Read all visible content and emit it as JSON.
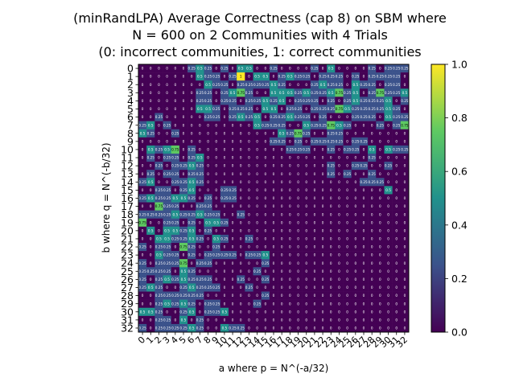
{
  "chart_data": {
    "type": "heatmap",
    "title_lines": [
      "(minRandLPA) Average Correctness (cap 8) on SBM where",
      "N = 600 on 2 Communities with 4 Trials",
      "(0: incorrect communities, 1: correct communities"
    ],
    "xlabel": "a where p = N^(-a/32)",
    "ylabel": "b where q = N^(-b/32)",
    "x_ticks": [
      "0",
      "1",
      "2",
      "3",
      "4",
      "5",
      "6",
      "7",
      "8",
      "9",
      "10",
      "11",
      "12",
      "13",
      "14",
      "15",
      "16",
      "17",
      "18",
      "19",
      "20",
      "21",
      "22",
      "23",
      "24",
      "25",
      "26",
      "27",
      "28",
      "29",
      "30",
      "31",
      "32"
    ],
    "y_ticks": [
      "0",
      "1",
      "2",
      "3",
      "4",
      "5",
      "6",
      "7",
      "8",
      "9",
      "10",
      "11",
      "12",
      "13",
      "14",
      "15",
      "16",
      "17",
      "18",
      "19",
      "20",
      "21",
      "22",
      "23",
      "24",
      "25",
      "26",
      "27",
      "28",
      "29",
      "30",
      "31",
      "32"
    ],
    "colorbar_ticks": [
      "0.0",
      "0.2",
      "0.4",
      "0.6",
      "0.8",
      "1.0"
    ],
    "zlim": [
      0,
      1
    ],
    "colormap": "viridis",
    "values": [
      [
        0.0,
        0.0,
        0.0,
        0.0,
        0.0,
        0.0,
        0.25,
        0.5,
        0.25,
        0.0,
        0.25,
        0.0,
        0.5,
        0.5,
        0.0,
        0.0,
        0.25,
        0.0,
        0.0,
        0.0,
        0.0,
        0.25,
        0.0,
        0.5,
        0.0,
        0.0,
        0.0,
        0.0,
        0.25,
        0.0,
        0.25,
        0.25,
        0.25
      ],
      [
        0.0,
        0.0,
        0.0,
        0.0,
        0.0,
        0.0,
        0.0,
        0.5,
        0.25,
        0.25,
        0.0,
        0.25,
        1.0,
        0.0,
        0.5,
        0.5,
        0.0,
        0.25,
        0.5,
        0.25,
        0.25,
        0.0,
        0.25,
        0.25,
        0.25,
        0.0,
        0.25,
        0.0,
        0.25,
        0.25,
        0.25,
        0.25,
        0.0
      ],
      [
        0.0,
        0.0,
        0.0,
        0.0,
        0.0,
        0.0,
        0.0,
        0.0,
        0.5,
        0.25,
        0.25,
        0.0,
        0.25,
        0.25,
        0.25,
        0.25,
        0.5,
        0.25,
        0.0,
        0.0,
        0.0,
        0.25,
        0.5,
        0.25,
        0.25,
        0.0,
        0.5,
        0.25,
        0.25,
        0.0,
        0.25,
        0.25,
        0.0
      ],
      [
        0.0,
        0.0,
        0.0,
        0.0,
        0.0,
        0.0,
        0.0,
        0.25,
        0.25,
        0.0,
        0.25,
        0.5,
        0.75,
        0.25,
        0.0,
        0.0,
        0.5,
        0.5,
        0.5,
        0.25,
        0.5,
        0.25,
        0.25,
        0.5,
        0.75,
        0.25,
        0.5,
        0.0,
        0.25,
        0.75,
        0.25,
        0.25,
        0.5
      ],
      [
        0.0,
        0.0,
        0.0,
        0.0,
        0.0,
        0.0,
        0.0,
        0.25,
        0.25,
        0.0,
        0.25,
        0.25,
        0.0,
        0.25,
        0.25,
        0.5,
        0.25,
        0.5,
        0.0,
        0.25,
        0.25,
        0.25,
        0.0,
        0.25,
        0.0,
        0.25,
        0.5,
        0.25,
        0.25,
        0.25,
        0.5,
        0.0,
        0.25
      ],
      [
        0.0,
        0.0,
        0.0,
        0.0,
        0.0,
        0.0,
        0.0,
        0.5,
        0.5,
        0.25,
        0.0,
        0.25,
        0.25,
        0.25,
        0.0,
        0.5,
        0.5,
        0.0,
        0.25,
        0.25,
        0.0,
        0.25,
        0.25,
        0.25,
        0.75,
        0.5,
        0.25,
        0.25,
        0.25,
        0.25,
        0.5,
        0.25,
        0.0
      ],
      [
        0.0,
        0.0,
        0.25,
        0.0,
        0.0,
        0.0,
        0.0,
        0.0,
        0.25,
        0.25,
        0.0,
        0.25,
        0.5,
        0.25,
        0.5,
        0.0,
        0.25,
        0.25,
        0.5,
        0.25,
        0.25,
        0.0,
        0.25,
        0.0,
        0.0,
        0.0,
        0.25,
        0.25,
        0.25,
        0.0,
        0.5,
        0.25,
        0.25
      ],
      [
        0.25,
        0.5,
        0.0,
        0.25,
        0.0,
        0.0,
        0.0,
        0.0,
        0.0,
        0.0,
        0.0,
        0.0,
        0.0,
        0.0,
        0.5,
        0.25,
        0.25,
        0.25,
        0.0,
        0.0,
        0.5,
        0.25,
        0.25,
        0.75,
        0.5,
        0.25,
        0.0,
        0.0,
        0.0,
        0.25,
        0.0,
        0.25,
        0.75
      ],
      [
        0.5,
        0.25,
        0.0,
        0.0,
        0.25,
        0.0,
        0.0,
        0.0,
        0.0,
        0.0,
        0.0,
        0.0,
        0.0,
        0.0,
        0.0,
        0.0,
        0.0,
        0.5,
        0.25,
        0.75,
        0.25,
        0.0,
        0.0,
        0.25,
        0.25,
        0.0,
        0.0,
        0.0,
        0.0,
        0.0,
        0.0,
        0.0,
        0.0
      ],
      [
        0.0,
        0.0,
        0.0,
        0.0,
        0.0,
        0.0,
        0.0,
        0.0,
        0.0,
        0.0,
        0.0,
        0.0,
        0.0,
        0.0,
        0.0,
        0.0,
        0.25,
        0.25,
        0.0,
        0.25,
        0.0,
        0.25,
        0.25,
        0.25,
        0.25,
        0.0,
        0.25,
        0.25,
        0.0,
        0.0,
        0.0,
        0.0,
        0.0
      ],
      [
        0.0,
        0.5,
        0.25,
        0.5,
        0.75,
        0.0,
        0.25,
        0.0,
        0.0,
        0.0,
        0.0,
        0.0,
        0.0,
        0.0,
        0.0,
        0.0,
        0.0,
        0.0,
        0.25,
        0.25,
        0.25,
        0.0,
        0.0,
        0.25,
        0.0,
        0.25,
        0.25,
        0.0,
        0.5,
        0.0,
        0.5,
        0.25,
        0.25
      ],
      [
        0.0,
        0.25,
        0.0,
        0.25,
        0.25,
        0.0,
        0.25,
        0.5,
        0.0,
        0.0,
        0.0,
        0.0,
        0.0,
        0.0,
        0.0,
        0.0,
        0.0,
        0.0,
        0.0,
        0.0,
        0.0,
        0.0,
        0.0,
        0.0,
        0.0,
        0.0,
        0.0,
        0.0,
        0.25,
        0.0,
        0.0,
        0.0,
        0.0
      ],
      [
        0.0,
        0.0,
        0.25,
        0.0,
        0.25,
        0.25,
        0.5,
        0.25,
        0.0,
        0.0,
        0.0,
        0.0,
        0.0,
        0.0,
        0.0,
        0.0,
        0.0,
        0.0,
        0.0,
        0.0,
        0.0,
        0.0,
        0.0,
        0.25,
        0.0,
        0.0,
        0.25,
        0.25,
        0.0,
        0.0,
        0.25,
        0.0,
        0.0
      ],
      [
        0.0,
        0.25,
        0.0,
        0.25,
        0.25,
        0.0,
        0.25,
        0.25,
        0.0,
        0.0,
        0.0,
        0.0,
        0.0,
        0.0,
        0.0,
        0.0,
        0.0,
        0.0,
        0.0,
        0.0,
        0.0,
        0.0,
        0.0,
        0.25,
        0.0,
        0.25,
        0.0,
        0.0,
        0.25,
        0.0,
        0.0,
        0.0,
        0.0
      ],
      [
        0.25,
        0.5,
        0.0,
        0.0,
        0.25,
        0.25,
        0.5,
        0.25,
        0.0,
        0.0,
        0.0,
        0.0,
        0.0,
        0.0,
        0.0,
        0.0,
        0.0,
        0.0,
        0.0,
        0.0,
        0.0,
        0.0,
        0.0,
        0.0,
        0.0,
        0.0,
        0.0,
        0.25,
        0.25,
        0.25,
        0.0,
        0.0,
        0.0
      ],
      [
        0.0,
        0.0,
        0.25,
        0.25,
        0.0,
        0.25,
        0.5,
        0.0,
        0.0,
        0.0,
        0.25,
        0.25,
        0.0,
        0.0,
        0.0,
        0.0,
        0.0,
        0.0,
        0.0,
        0.0,
        0.0,
        0.0,
        0.0,
        0.0,
        0.0,
        0.0,
        0.0,
        0.0,
        0.0,
        0.0,
        0.5,
        0.0,
        0.0
      ],
      [
        0.25,
        0.5,
        0.25,
        0.25,
        0.5,
        0.5,
        0.25,
        0.0,
        0.25,
        0.0,
        0.25,
        0.25,
        0.0,
        0.0,
        0.0,
        0.0,
        0.0,
        0.0,
        0.0,
        0.0,
        0.0,
        0.0,
        0.0,
        0.0,
        0.0,
        0.0,
        0.0,
        0.0,
        0.0,
        0.0,
        0.0,
        0.0,
        0.0
      ],
      [
        0.0,
        0.0,
        0.75,
        0.25,
        0.25,
        0.0,
        0.0,
        0.25,
        0.25,
        0.0,
        0.0,
        0.0,
        0.0,
        0.0,
        0.0,
        0.0,
        0.0,
        0.0,
        0.0,
        0.0,
        0.0,
        0.0,
        0.0,
        0.0,
        0.0,
        0.0,
        0.0,
        0.0,
        0.0,
        0.0,
        0.0,
        0.0,
        0.0
      ],
      [
        0.25,
        0.25,
        0.25,
        0.25,
        0.5,
        0.25,
        0.25,
        0.5,
        0.25,
        0.25,
        0.0,
        0.0,
        0.25,
        0.0,
        0.0,
        0.0,
        0.0,
        0.0,
        0.0,
        0.0,
        0.0,
        0.0,
        0.0,
        0.0,
        0.0,
        0.0,
        0.0,
        0.0,
        0.0,
        0.0,
        0.0,
        0.0,
        0.0
      ],
      [
        0.75,
        0.0,
        0.0,
        0.25,
        0.25,
        0.0,
        0.25,
        0.0,
        0.5,
        0.5,
        0.25,
        0.0,
        0.0,
        0.0,
        0.0,
        0.0,
        0.0,
        0.0,
        0.0,
        0.0,
        0.0,
        0.0,
        0.0,
        0.0,
        0.0,
        0.0,
        0.0,
        0.0,
        0.0,
        0.0,
        0.0,
        0.0,
        0.0
      ],
      [
        0.0,
        0.5,
        0.0,
        0.5,
        0.5,
        0.25,
        0.5,
        0.0,
        0.25,
        0.0,
        0.0,
        0.0,
        0.0,
        0.0,
        0.0,
        0.0,
        0.0,
        0.0,
        0.0,
        0.0,
        0.0,
        0.0,
        0.0,
        0.0,
        0.0,
        0.0,
        0.0,
        0.0,
        0.0,
        0.0,
        0.0,
        0.0,
        0.0
      ],
      [
        0.0,
        0.0,
        0.5,
        0.5,
        0.25,
        0.25,
        0.5,
        0.25,
        0.0,
        0.5,
        0.25,
        0.0,
        0.0,
        0.25,
        0.0,
        0.0,
        0.0,
        0.0,
        0.0,
        0.0,
        0.0,
        0.0,
        0.0,
        0.0,
        0.0,
        0.0,
        0.0,
        0.0,
        0.0,
        0.0,
        0.0,
        0.0,
        0.0
      ],
      [
        0.25,
        0.0,
        0.25,
        0.25,
        0.0,
        0.75,
        0.25,
        0.0,
        0.0,
        0.25,
        0.0,
        0.0,
        0.0,
        0.0,
        0.0,
        0.0,
        0.0,
        0.0,
        0.0,
        0.0,
        0.0,
        0.0,
        0.0,
        0.0,
        0.0,
        0.0,
        0.0,
        0.0,
        0.0,
        0.0,
        0.0,
        0.0,
        0.0
      ],
      [
        0.0,
        0.0,
        0.5,
        0.25,
        0.25,
        0.0,
        0.25,
        0.0,
        0.25,
        0.25,
        0.25,
        0.25,
        0.0,
        0.25,
        0.25,
        0.5,
        0.0,
        0.0,
        0.0,
        0.0,
        0.0,
        0.0,
        0.0,
        0.0,
        0.0,
        0.0,
        0.0,
        0.0,
        0.0,
        0.0,
        0.0,
        0.0,
        0.0
      ],
      [
        0.25,
        0.0,
        0.25,
        0.25,
        0.25,
        0.75,
        0.0,
        0.25,
        0.25,
        0.0,
        0.0,
        0.0,
        0.0,
        0.0,
        0.0,
        0.25,
        0.0,
        0.0,
        0.0,
        0.0,
        0.0,
        0.0,
        0.0,
        0.0,
        0.0,
        0.0,
        0.0,
        0.0,
        0.0,
        0.0,
        0.0,
        0.0,
        0.0
      ],
      [
        0.25,
        0.25,
        0.25,
        0.25,
        0.0,
        0.5,
        0.25,
        0.0,
        0.0,
        0.0,
        0.0,
        0.0,
        0.0,
        0.0,
        0.25,
        0.0,
        0.0,
        0.0,
        0.0,
        0.0,
        0.0,
        0.0,
        0.0,
        0.0,
        0.0,
        0.0,
        0.0,
        0.0,
        0.0,
        0.0,
        0.0,
        0.0,
        0.0
      ],
      [
        0.25,
        0.0,
        0.25,
        0.5,
        0.25,
        0.5,
        0.25,
        0.25,
        0.25,
        0.0,
        0.0,
        0.0,
        0.25,
        0.0,
        0.0,
        0.25,
        0.0,
        0.0,
        0.0,
        0.0,
        0.0,
        0.0,
        0.0,
        0.0,
        0.0,
        0.0,
        0.0,
        0.0,
        0.0,
        0.0,
        0.0,
        0.0,
        0.0
      ],
      [
        0.25,
        0.5,
        0.25,
        0.0,
        0.0,
        0.25,
        0.5,
        0.25,
        0.25,
        0.25,
        0.0,
        0.0,
        0.0,
        0.25,
        0.0,
        0.0,
        0.0,
        0.0,
        0.0,
        0.0,
        0.0,
        0.0,
        0.0,
        0.0,
        0.0,
        0.0,
        0.0,
        0.0,
        0.0,
        0.0,
        0.0,
        0.0,
        0.0
      ],
      [
        0.0,
        0.0,
        0.25,
        0.25,
        0.25,
        0.25,
        0.25,
        0.25,
        0.0,
        0.0,
        0.0,
        0.0,
        0.0,
        0.0,
        0.0,
        0.25,
        0.0,
        0.0,
        0.0,
        0.0,
        0.0,
        0.0,
        0.0,
        0.0,
        0.0,
        0.0,
        0.0,
        0.0,
        0.0,
        0.0,
        0.0,
        0.0,
        0.0
      ],
      [
        0.0,
        0.0,
        0.25,
        0.5,
        0.25,
        0.5,
        0.25,
        0.0,
        0.25,
        0.25,
        0.0,
        0.0,
        0.0,
        0.0,
        0.25,
        0.0,
        0.0,
        0.0,
        0.0,
        0.0,
        0.0,
        0.0,
        0.0,
        0.0,
        0.0,
        0.0,
        0.0,
        0.0,
        0.0,
        0.0,
        0.0,
        0.0,
        0.0
      ],
      [
        0.5,
        0.5,
        0.25,
        0.0,
        0.0,
        0.25,
        0.5,
        0.0,
        0.25,
        0.25,
        0.5,
        0.0,
        0.0,
        0.0,
        0.0,
        0.0,
        0.0,
        0.0,
        0.0,
        0.0,
        0.0,
        0.0,
        0.0,
        0.0,
        0.0,
        0.0,
        0.0,
        0.0,
        0.0,
        0.0,
        0.0,
        0.0,
        0.0
      ],
      [
        0.0,
        0.0,
        0.25,
        0.25,
        0.0,
        0.5,
        0.0,
        0.25,
        0.0,
        0.0,
        0.0,
        0.0,
        0.0,
        0.0,
        0.0,
        0.0,
        0.0,
        0.0,
        0.0,
        0.0,
        0.0,
        0.0,
        0.0,
        0.0,
        0.0,
        0.0,
        0.0,
        0.0,
        0.0,
        0.0,
        0.0,
        0.0,
        0.0
      ],
      [
        0.25,
        0.0,
        0.25,
        0.25,
        0.25,
        0.25,
        0.5,
        0.25,
        0.0,
        0.0,
        0.5,
        0.25,
        0.25,
        0.0,
        0.0,
        0.0,
        0.0,
        0.0,
        0.0,
        0.0,
        0.0,
        0.0,
        0.0,
        0.0,
        0.0,
        0.0,
        0.0,
        0.0,
        0.0,
        0.0,
        0.0,
        0.0,
        0.0
      ]
    ]
  }
}
